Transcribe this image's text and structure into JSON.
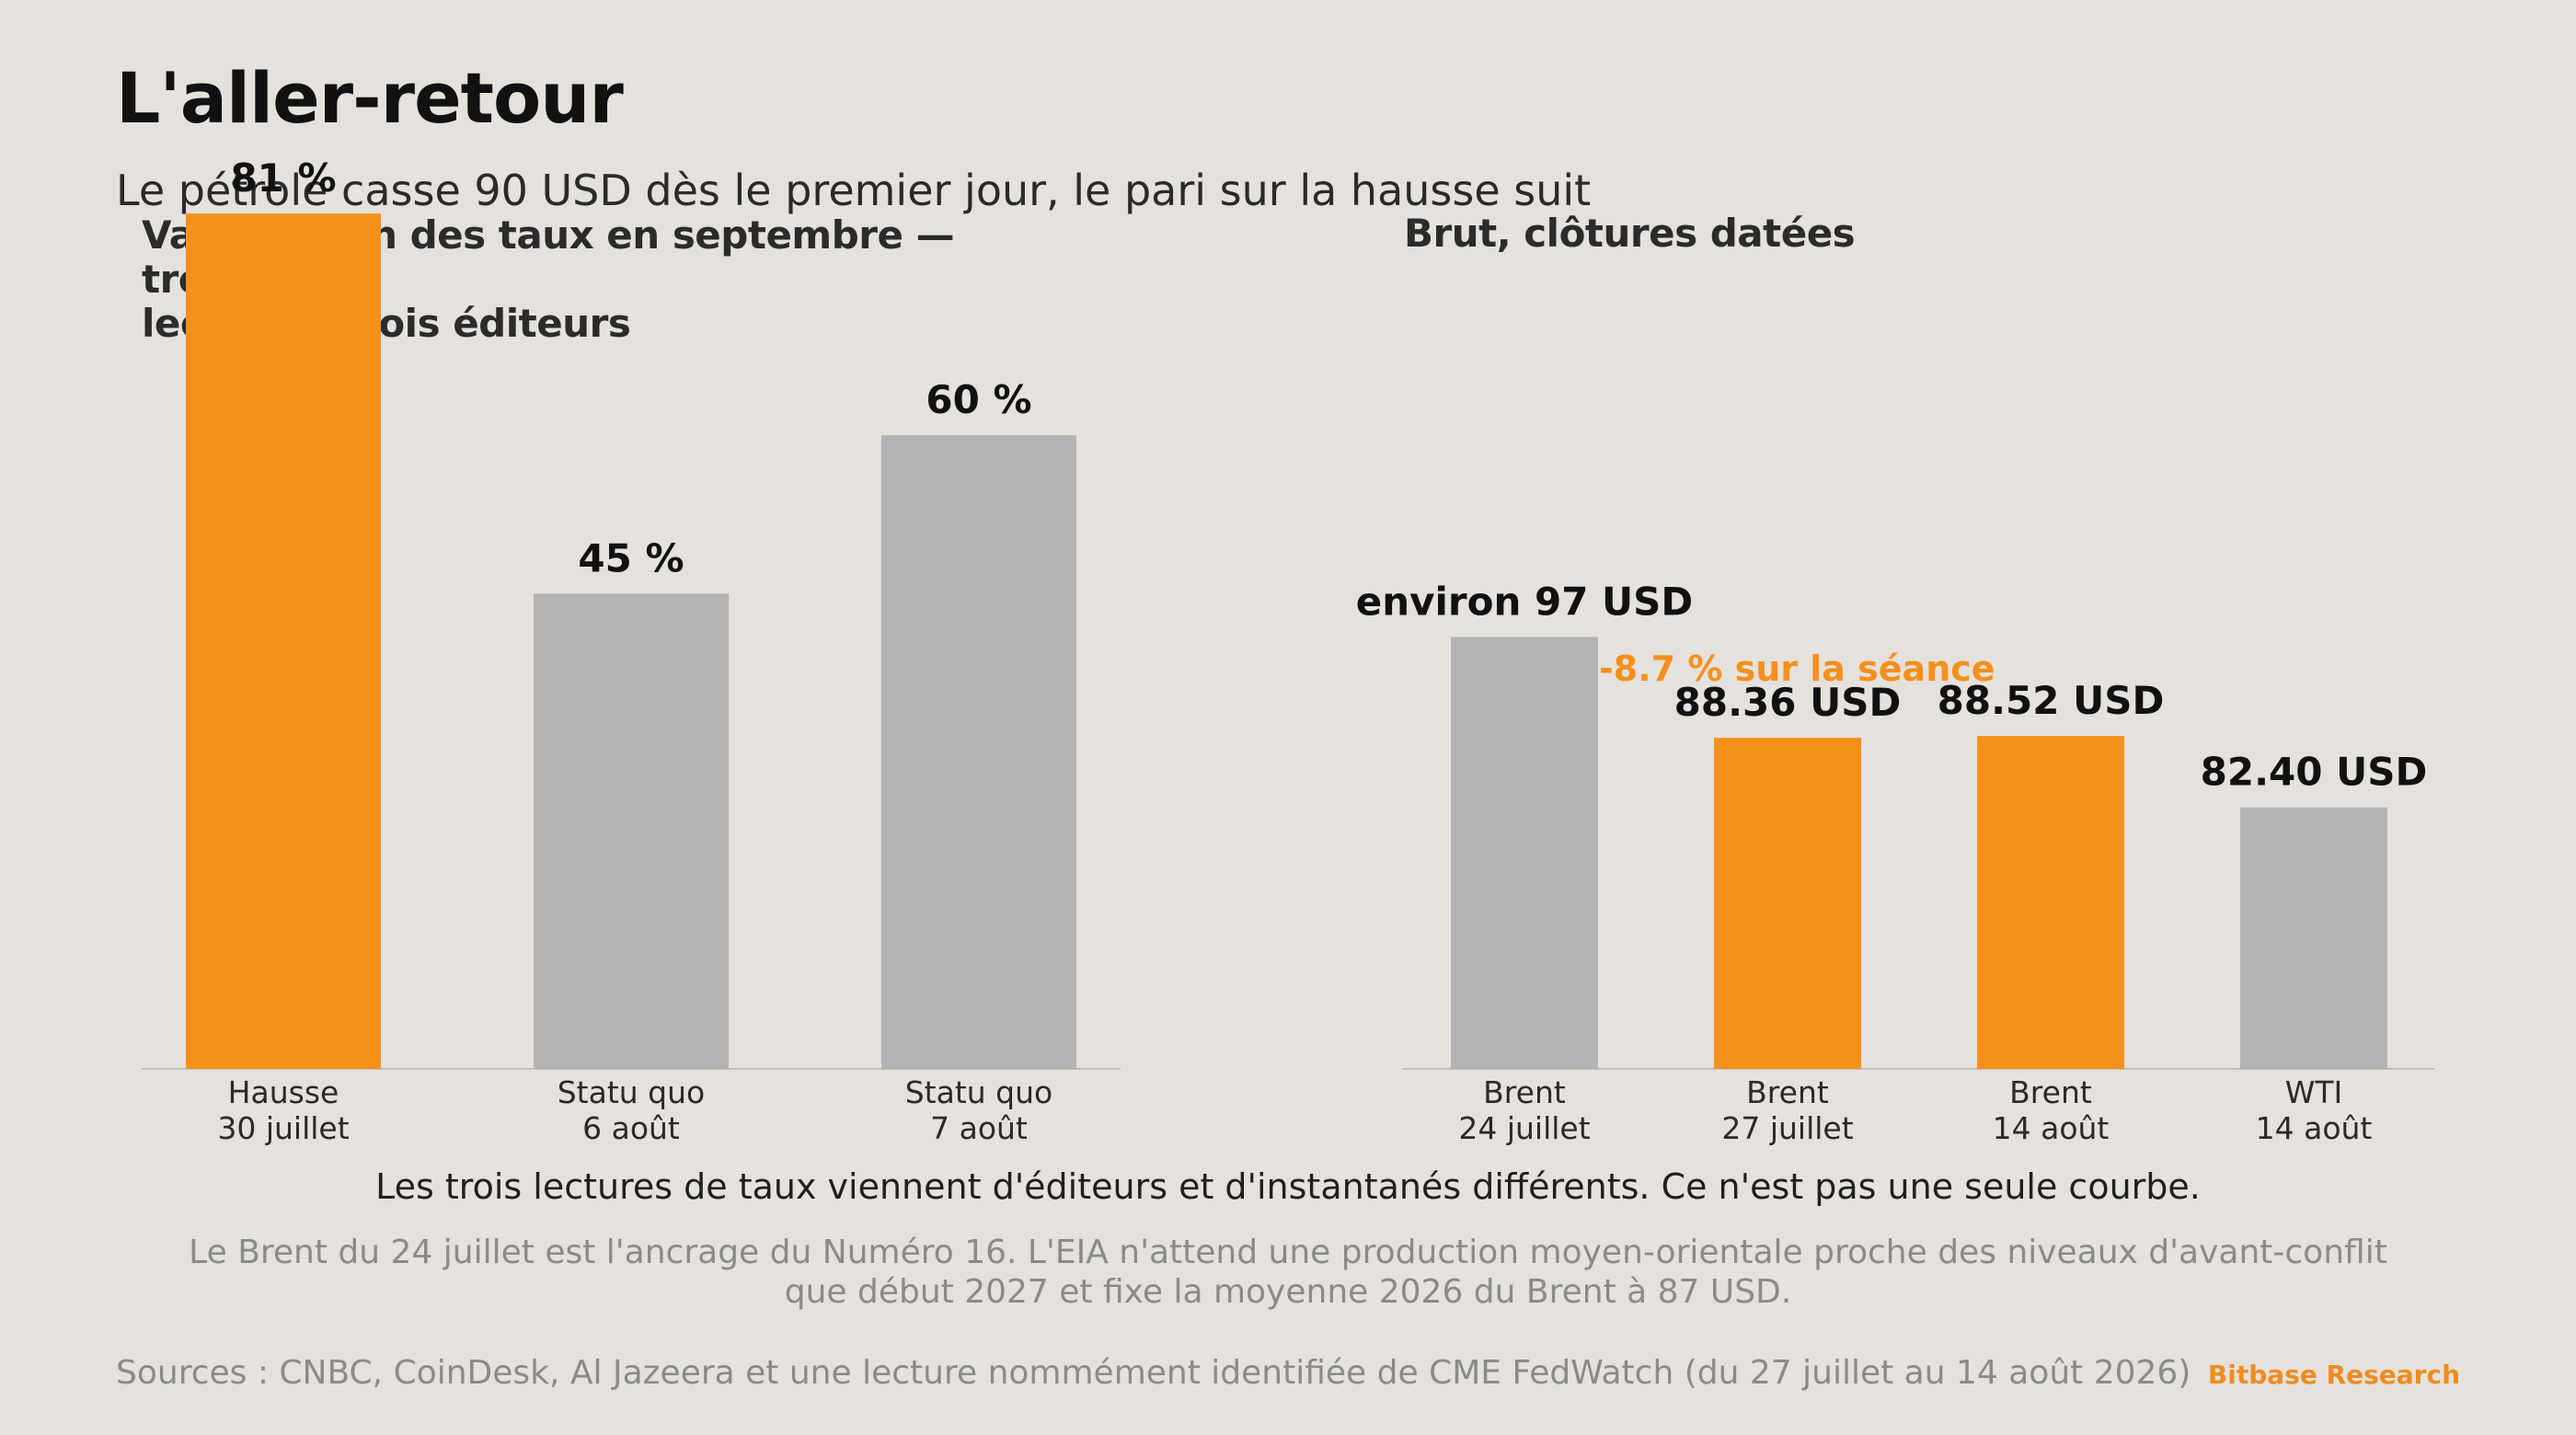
{
  "header": {
    "title": "L'aller-retour",
    "subtitle": "Le pétrole casse 90 USD dès le premier jour, le pari sur la hausse suit"
  },
  "colors": {
    "accent": "#f5901c",
    "neutral": "#b3b3b3",
    "background": "#e5e1dc"
  },
  "chart_data": [
    {
      "type": "bar",
      "title": "Valorisation des taux en septembre — trois lectures, trois éditeurs",
      "title_lines": [
        "Valorisation des taux en septembre — trois",
        "lectures, trois éditeurs"
      ],
      "categories": [
        {
          "line1": "Hausse",
          "line2": "30 juillet"
        },
        {
          "line1": "Statu quo",
          "line2": "6 août"
        },
        {
          "line1": "Statu quo",
          "line2": "7 août"
        }
      ],
      "values": [
        81,
        45,
        60
      ],
      "value_labels": [
        "81 %",
        "45 %",
        "60 %"
      ],
      "highlight": [
        true,
        false,
        false
      ],
      "unit": "%",
      "ylim": [
        0,
        100
      ],
      "grid": false
    },
    {
      "type": "bar",
      "title": "Brut, clôtures datées",
      "categories": [
        {
          "line1": "Brent",
          "line2": "24 juillet"
        },
        {
          "line1": "Brent",
          "line2": "27 juillet"
        },
        {
          "line1": "Brent",
          "line2": "14 août"
        },
        {
          "line1": "WTI",
          "line2": "14 août"
        }
      ],
      "values": [
        97,
        88.36,
        88.52,
        82.4
      ],
      "value_labels": [
        "environ 97 USD",
        "88.36 USD",
        "88.52 USD",
        "82.40 USD"
      ],
      "highlight": [
        false,
        true,
        true,
        false
      ],
      "annotation": "-8.7 % sur la séance",
      "unit": "USD",
      "ylim": [
        60,
        104
      ],
      "grid": false
    }
  ],
  "notes": {
    "line1": "Les trois lectures de taux viennent d'éditeurs et d'instantanés différents. Ce n'est pas une seule courbe.",
    "line2": "Le Brent du 24 juillet est l'ancrage du Numéro 16. L'EIA n'attend une production moyen-orientale proche des niveaux d'avant-conflit que début 2027 et fixe la moyenne 2026 du Brent à 87 USD."
  },
  "footer": {
    "sources": "Sources : CNBC, CoinDesk, Al Jazeera et une lecture nommément identifiée de CME FedWatch (du 27 juillet au 14 août 2026)",
    "brand": "Bitbase Research"
  }
}
